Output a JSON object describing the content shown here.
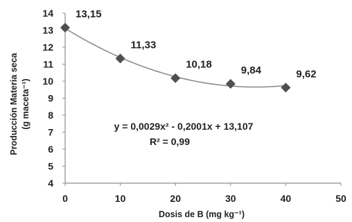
{
  "chart_data": {
    "type": "scatter",
    "x": [
      0,
      10,
      20,
      30,
      40
    ],
    "y": [
      13.15,
      11.33,
      10.18,
      9.84,
      9.62
    ],
    "data_labels": [
      "13,15",
      "11,33",
      "10,18",
      "9,84",
      "9,62"
    ],
    "x_ticks": [
      "0",
      "10",
      "20",
      "30",
      "40",
      "50"
    ],
    "y_ticks": [
      "4",
      "5",
      "6",
      "7",
      "8",
      "9",
      "10",
      "11",
      "12",
      "13",
      "14"
    ],
    "xlim": [
      0,
      50
    ],
    "ylim": [
      4,
      14
    ],
    "xlabel": "Dosis de B (mg kg⁻¹)",
    "ylabel_line1": "Producción Materia seca",
    "ylabel_line2": "(g maceta⁻¹)",
    "grid": false,
    "marker": "diamond",
    "trendline": {
      "type": "polynomial",
      "coefficients": [
        0.0029,
        -0.2001,
        13.107
      ],
      "x_range": [
        0,
        40
      ],
      "equation": "y = 0,0029x² - 0,2001x + 13,107",
      "r2": "R² = 0,99"
    },
    "colors": {
      "marker": "#4f4f4f",
      "trendline": "#8c8c8c",
      "axis": "#8c8c8c",
      "text": "#222222"
    }
  }
}
